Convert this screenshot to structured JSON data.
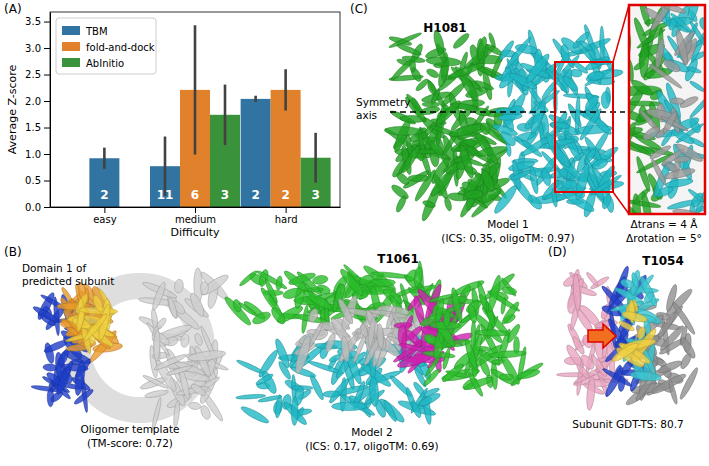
{
  "chart_data": {
    "type": "bar",
    "x_label": "Difficulty",
    "y_label": "Average Z-score",
    "categories": [
      "easy",
      "medium",
      "hard"
    ],
    "series": [
      {
        "name": "TBM",
        "color": "#3274a1",
        "values": [
          0.92,
          0.77,
          2.04
        ],
        "errors": [
          0.2,
          0.56,
          0.06
        ],
        "counts": [
          2,
          11,
          2
        ]
      },
      {
        "name": "fold-and-dock",
        "color": "#e1812c",
        "values": [
          null,
          2.21,
          2.21
        ],
        "errors": [
          null,
          1.22,
          0.39
        ],
        "counts": [
          null,
          6,
          2
        ]
      },
      {
        "name": "AbInitio",
        "color": "#3a923a",
        "values": [
          null,
          1.74,
          0.93
        ],
        "errors": [
          null,
          0.57,
          0.47
        ],
        "counts": [
          null,
          3,
          3
        ]
      }
    ],
    "ylim": [
      0,
      3.68
    ],
    "yticks": [
      {
        "value": 0,
        "label": "0.0"
      },
      {
        "value": 0.5,
        "label": "0.5"
      },
      {
        "value": 1,
        "label": "1.0"
      },
      {
        "value": 1.5,
        "label": "1.5"
      },
      {
        "value": 2,
        "label": "2.0"
      },
      {
        "value": 2.5,
        "label": "2.5"
      },
      {
        "value": 3,
        "label": "3.0"
      },
      {
        "value": 3.5,
        "label": "3.5"
      }
    ],
    "legend": "upper left"
  },
  "figure": {
    "panel_labels": [
      "(A)",
      "(B)",
      "(C)",
      "(D)"
    ],
    "panel_b": {
      "annotation": [
        "Domain 1 of",
        "predicted subunit"
      ],
      "left_caption": [
        "Oligomer template",
        "(TM-score: 0.72)"
      ],
      "target": "T1061",
      "right_caption": [
        "Model 2",
        "(ICS: 0.17, oligoTM: 0.69)"
      ]
    },
    "panel_c": {
      "target": "H1081",
      "axis_label": [
        "Symmetry",
        "axis"
      ],
      "caption": [
        "Model 1",
        "(ICS: 0.35, oligoTM: 0.97)"
      ],
      "zoom_caption": [
        "Δtrans = 4 Å",
        "Δrotation = 5°"
      ]
    },
    "panel_d": {
      "target": "T1054",
      "caption": [
        "Subunit GDT-TS: 80.7"
      ]
    }
  }
}
